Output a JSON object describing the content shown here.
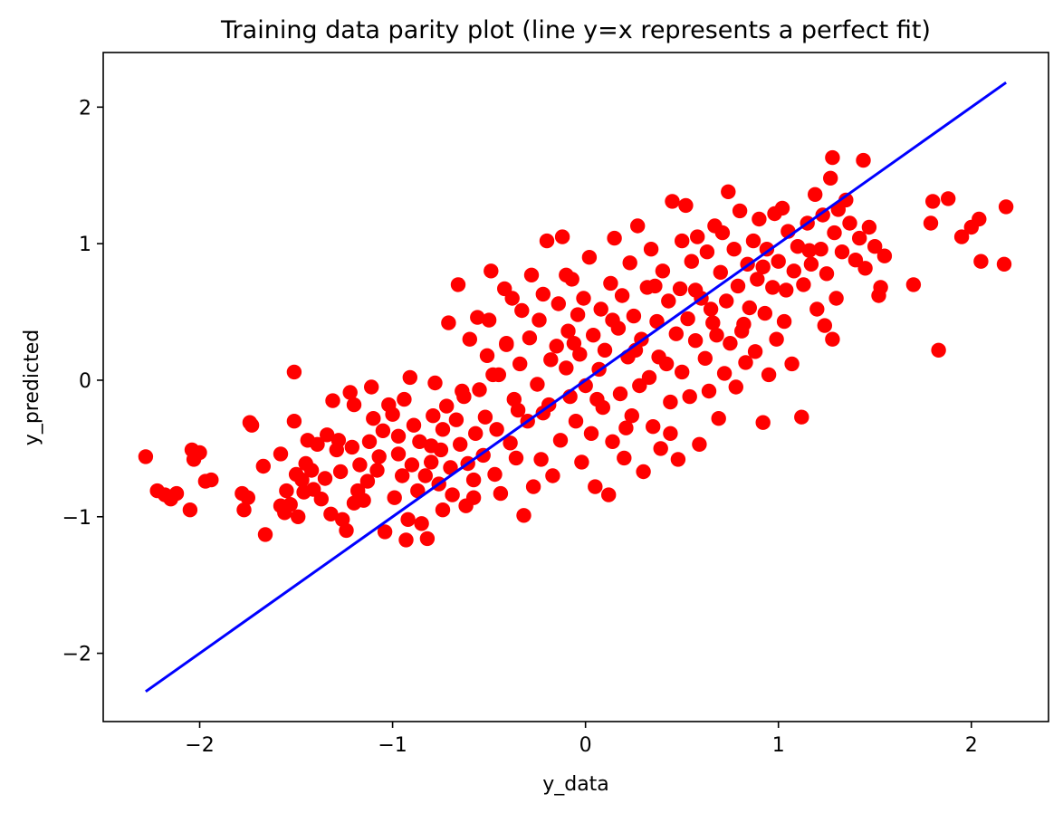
{
  "chart_data": {
    "type": "scatter",
    "title": "Training data parity plot (line y=x represents a perfect fit)",
    "xlabel": "y_data",
    "ylabel": "y_predicted",
    "xlim": [
      -2.5,
      2.4
    ],
    "ylim": [
      -2.5,
      2.4
    ],
    "xticks": [
      -2,
      -1,
      0,
      1,
      2
    ],
    "yticks": [
      -2,
      -1,
      0,
      1,
      2
    ],
    "tick_labels": [
      "−2",
      "−1",
      "0",
      "1",
      "2"
    ],
    "grid": false,
    "point_color": "#ff0000",
    "line_color": "#0000ff",
    "reference_line": {
      "x": [
        -2.28,
        2.18
      ],
      "y": [
        -2.28,
        2.18
      ]
    },
    "series": [
      {
        "points": [
          [
            -2.28,
            -0.56
          ],
          [
            -2.22,
            -0.81
          ],
          [
            -2.18,
            -0.84
          ],
          [
            -2.15,
            -0.87
          ],
          [
            -2.12,
            -0.83
          ],
          [
            -2.05,
            -0.95
          ],
          [
            -2.04,
            -0.51
          ],
          [
            -2.03,
            -0.58
          ],
          [
            -2.0,
            -0.53
          ],
          [
            -1.97,
            -0.74
          ],
          [
            -1.94,
            -0.73
          ],
          [
            -1.78,
            -0.83
          ],
          [
            -1.77,
            -0.95
          ],
          [
            -1.75,
            -0.86
          ],
          [
            -1.74,
            -0.31
          ],
          [
            -1.73,
            -0.33
          ],
          [
            -1.67,
            -0.63
          ],
          [
            -1.66,
            -1.13
          ],
          [
            -1.58,
            -0.54
          ],
          [
            -1.58,
            -0.92
          ],
          [
            -1.56,
            -0.97
          ],
          [
            -1.55,
            -0.81
          ],
          [
            -1.53,
            -0.91
          ],
          [
            -1.51,
            -0.3
          ],
          [
            -1.51,
            0.06
          ],
          [
            -1.5,
            -0.69
          ],
          [
            -1.49,
            -1.0
          ],
          [
            -1.47,
            -0.73
          ],
          [
            -1.46,
            -0.82
          ],
          [
            -1.45,
            -0.61
          ],
          [
            -1.44,
            -0.44
          ],
          [
            -1.42,
            -0.66
          ],
          [
            -1.41,
            -0.8
          ],
          [
            -1.39,
            -0.47
          ],
          [
            -1.37,
            -0.87
          ],
          [
            -1.35,
            -0.72
          ],
          [
            -1.34,
            -0.4
          ],
          [
            -1.32,
            -0.98
          ],
          [
            -1.31,
            -0.15
          ],
          [
            -1.29,
            -0.51
          ],
          [
            -1.28,
            -0.44
          ],
          [
            -1.27,
            -0.67
          ],
          [
            -1.26,
            -1.02
          ],
          [
            -1.24,
            -1.1
          ],
          [
            -1.22,
            -0.09
          ],
          [
            -1.21,
            -0.49
          ],
          [
            -1.2,
            -0.9
          ],
          [
            -1.18,
            -0.81
          ],
          [
            -1.17,
            -0.62
          ],
          [
            -1.15,
            -0.88
          ],
          [
            -1.13,
            -0.74
          ],
          [
            -1.12,
            -0.45
          ],
          [
            -1.11,
            -0.05
          ],
          [
            -1.1,
            -0.28
          ],
          [
            -1.08,
            -0.66
          ],
          [
            -1.07,
            -0.56
          ],
          [
            -1.05,
            -0.37
          ],
          [
            -1.04,
            -1.11
          ],
          [
            -1.02,
            -0.18
          ],
          [
            -1.0,
            -0.25
          ],
          [
            -0.99,
            -0.86
          ],
          [
            -0.97,
            -0.54
          ],
          [
            -0.95,
            -0.7
          ],
          [
            -0.94,
            -0.14
          ],
          [
            -0.93,
            -1.17
          ],
          [
            -0.92,
            -1.02
          ],
          [
            -0.91,
            0.02
          ],
          [
            -0.9,
            -0.62
          ],
          [
            -0.89,
            -0.33
          ],
          [
            -0.87,
            -0.81
          ],
          [
            -0.86,
            -0.45
          ],
          [
            -0.85,
            -1.05
          ],
          [
            -0.83,
            -0.7
          ],
          [
            -0.82,
            -1.16
          ],
          [
            -0.8,
            -0.6
          ],
          [
            -0.79,
            -0.26
          ],
          [
            -0.78,
            -0.02
          ],
          [
            -0.76,
            -0.76
          ],
          [
            -0.75,
            -0.51
          ],
          [
            -0.74,
            -0.36
          ],
          [
            -0.72,
            -0.19
          ],
          [
            -0.71,
            0.42
          ],
          [
            -0.7,
            -0.64
          ],
          [
            -0.69,
            -0.84
          ],
          [
            -0.67,
            -0.29
          ],
          [
            -0.66,
            0.7
          ],
          [
            -0.65,
            -0.47
          ],
          [
            -0.64,
            -0.08
          ],
          [
            -0.62,
            -0.92
          ],
          [
            -0.61,
            -0.61
          ],
          [
            -0.6,
            0.3
          ],
          [
            -0.58,
            -0.73
          ],
          [
            -0.57,
            -0.39
          ],
          [
            -0.56,
            0.46
          ],
          [
            -0.55,
            -0.07
          ],
          [
            -0.53,
            -0.55
          ],
          [
            -0.52,
            -0.27
          ],
          [
            -0.51,
            0.18
          ],
          [
            -0.5,
            0.44
          ],
          [
            -0.49,
            0.8
          ],
          [
            -0.47,
            -0.69
          ],
          [
            -0.46,
            -0.36
          ],
          [
            -0.45,
            0.04
          ],
          [
            -0.44,
            -0.83
          ],
          [
            -0.42,
            0.67
          ],
          [
            -0.41,
            0.27
          ],
          [
            -0.39,
            -0.46
          ],
          [
            -0.38,
            0.6
          ],
          [
            -0.37,
            -0.14
          ],
          [
            -0.36,
            -0.57
          ],
          [
            -0.34,
            0.12
          ],
          [
            -0.33,
            0.51
          ],
          [
            -0.32,
            -0.99
          ],
          [
            -0.3,
            -0.3
          ],
          [
            -0.29,
            0.31
          ],
          [
            -0.28,
            0.77
          ],
          [
            -0.27,
            -0.78
          ],
          [
            -0.25,
            -0.03
          ],
          [
            -0.24,
            0.44
          ],
          [
            -0.23,
            -0.58
          ],
          [
            -0.22,
            0.63
          ],
          [
            -0.2,
            1.02
          ],
          [
            -0.19,
            -0.18
          ],
          [
            -0.18,
            0.15
          ],
          [
            -0.17,
            -0.7
          ],
          [
            -0.15,
            0.25
          ],
          [
            -0.14,
            0.56
          ],
          [
            -0.13,
            -0.44
          ],
          [
            -0.12,
            1.05
          ],
          [
            -0.1,
            0.09
          ],
          [
            -0.09,
            0.36
          ],
          [
            -0.08,
            -0.12
          ],
          [
            -0.07,
            0.74
          ],
          [
            -0.05,
            -0.3
          ],
          [
            -0.04,
            0.48
          ],
          [
            -0.03,
            0.19
          ],
          [
            -0.02,
            -0.6
          ],
          [
            -0.01,
            0.6
          ],
          [
            0.0,
            -0.04
          ],
          [
            0.02,
            0.9
          ],
          [
            0.03,
            -0.39
          ],
          [
            0.04,
            0.33
          ],
          [
            0.05,
            -0.78
          ],
          [
            0.07,
            0.08
          ],
          [
            0.08,
            0.52
          ],
          [
            0.09,
            -0.2
          ],
          [
            0.1,
            0.22
          ],
          [
            0.12,
            -0.84
          ],
          [
            0.13,
            0.71
          ],
          [
            0.14,
            -0.45
          ],
          [
            0.15,
            1.04
          ],
          [
            0.17,
            0.38
          ],
          [
            0.18,
            -0.1
          ],
          [
            0.19,
            0.62
          ],
          [
            0.2,
            -0.57
          ],
          [
            0.22,
            0.17
          ],
          [
            0.23,
            0.86
          ],
          [
            0.24,
            -0.26
          ],
          [
            0.25,
            0.47
          ],
          [
            0.27,
            1.13
          ],
          [
            0.28,
            -0.04
          ],
          [
            0.29,
            0.3
          ],
          [
            0.3,
            -0.67
          ],
          [
            0.32,
            0.68
          ],
          [
            0.33,
            0.02
          ],
          [
            0.34,
            0.96
          ],
          [
            0.35,
            -0.34
          ],
          [
            0.37,
            0.43
          ],
          [
            0.38,
            0.17
          ],
          [
            0.39,
            -0.5
          ],
          [
            0.4,
            0.8
          ],
          [
            0.42,
            0.12
          ],
          [
            0.43,
            0.58
          ],
          [
            0.44,
            -0.16
          ],
          [
            0.45,
            1.31
          ],
          [
            0.47,
            0.34
          ],
          [
            0.48,
            -0.58
          ],
          [
            0.49,
            0.67
          ],
          [
            0.5,
            0.06
          ],
          [
            0.52,
            1.28
          ],
          [
            0.53,
            0.45
          ],
          [
            0.54,
            -0.12
          ],
          [
            0.55,
            0.87
          ],
          [
            0.57,
            0.29
          ],
          [
            0.58,
            1.05
          ],
          [
            0.59,
            -0.47
          ],
          [
            0.6,
            0.6
          ],
          [
            0.62,
            0.16
          ],
          [
            0.63,
            0.94
          ],
          [
            0.64,
            -0.08
          ],
          [
            0.65,
            0.52
          ],
          [
            0.67,
            1.13
          ],
          [
            0.68,
            0.33
          ],
          [
            0.69,
            -0.28
          ],
          [
            0.7,
            0.79
          ],
          [
            0.72,
            0.05
          ],
          [
            0.73,
            0.58
          ],
          [
            0.74,
            1.38
          ],
          [
            0.75,
            0.27
          ],
          [
            0.77,
            0.96
          ],
          [
            0.78,
            -0.05
          ],
          [
            0.79,
            0.69
          ],
          [
            0.8,
            1.24
          ],
          [
            0.82,
            0.41
          ],
          [
            0.83,
            0.13
          ],
          [
            0.84,
            0.85
          ],
          [
            0.85,
            0.53
          ],
          [
            0.87,
            1.02
          ],
          [
            0.88,
            0.21
          ],
          [
            0.89,
            0.74
          ],
          [
            0.9,
            1.18
          ],
          [
            0.92,
            -0.31
          ],
          [
            0.93,
            0.49
          ],
          [
            0.94,
            0.96
          ],
          [
            0.95,
            0.04
          ],
          [
            0.97,
            0.68
          ],
          [
            0.98,
            1.22
          ],
          [
            0.99,
            0.3
          ],
          [
            1.0,
            0.87
          ],
          [
            1.02,
            1.26
          ],
          [
            1.03,
            0.43
          ],
          [
            1.04,
            0.66
          ],
          [
            1.05,
            1.09
          ],
          [
            1.07,
            0.12
          ],
          [
            1.08,
            0.8
          ],
          [
            1.1,
            0.98
          ],
          [
            1.12,
            -0.27
          ],
          [
            1.13,
            0.7
          ],
          [
            1.15,
            1.15
          ],
          [
            1.17,
            0.85
          ],
          [
            1.19,
            1.36
          ],
          [
            1.2,
            0.52
          ],
          [
            1.22,
            0.96
          ],
          [
            1.23,
            1.21
          ],
          [
            1.24,
            0.4
          ],
          [
            1.25,
            0.78
          ],
          [
            1.27,
            1.48
          ],
          [
            1.28,
            0.3
          ],
          [
            1.29,
            1.08
          ],
          [
            1.3,
            0.6
          ],
          [
            1.31,
            1.25
          ],
          [
            1.33,
            0.94
          ],
          [
            1.35,
            1.32
          ],
          [
            1.37,
            1.15
          ],
          [
            1.4,
            0.88
          ],
          [
            1.42,
            1.04
          ],
          [
            1.44,
            1.61
          ],
          [
            1.45,
            0.82
          ],
          [
            1.47,
            1.12
          ],
          [
            1.5,
            0.98
          ],
          [
            1.52,
            0.62
          ],
          [
            1.53,
            0.68
          ],
          [
            1.55,
            0.91
          ],
          [
            1.7,
            0.7
          ],
          [
            1.79,
            1.15
          ],
          [
            1.8,
            1.31
          ],
          [
            1.83,
            0.22
          ],
          [
            1.88,
            1.33
          ],
          [
            1.95,
            1.05
          ],
          [
            2.0,
            1.12
          ],
          [
            2.04,
            1.18
          ],
          [
            2.05,
            0.87
          ],
          [
            2.17,
            0.85
          ],
          [
            2.18,
            1.27
          ],
          [
            1.28,
            1.63
          ],
          [
            0.14,
            0.44
          ],
          [
            -0.06,
            0.27
          ],
          [
            0.21,
            -0.35
          ],
          [
            -0.35,
            -0.22
          ],
          [
            0.36,
            0.69
          ],
          [
            -0.63,
            -0.12
          ],
          [
            0.57,
            0.66
          ],
          [
            -0.8,
            -0.48
          ],
          [
            0.81,
            0.36
          ],
          [
            -0.97,
            -0.41
          ],
          [
            0.66,
            0.42
          ],
          [
            -0.48,
            0.04
          ],
          [
            0.26,
            0.22
          ],
          [
            -0.22,
            -0.24
          ],
          [
            0.44,
            -0.39
          ],
          [
            -0.58,
            -0.86
          ],
          [
            0.06,
            -0.14
          ],
          [
            -1.2,
            -0.18
          ],
          [
            0.71,
            1.08
          ],
          [
            -0.1,
            0.77
          ],
          [
            0.92,
            0.83
          ],
          [
            -0.41,
            0.26
          ],
          [
            0.5,
            1.02
          ],
          [
            -0.74,
            -0.95
          ],
          [
            1.16,
            0.95
          ]
        ]
      }
    ]
  }
}
